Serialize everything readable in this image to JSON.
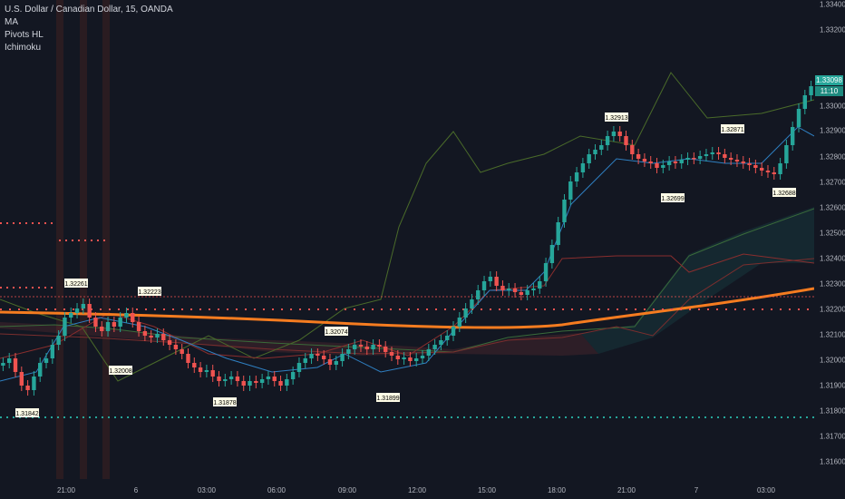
{
  "legend": {
    "title": "U.S. Dollar / Canadian Dollar, 15, OANDA",
    "ind1": "MA",
    "ind2": "Pivots HL",
    "ind3": "Ichimoku"
  },
  "price_axis": {
    "ticks": [
      "1.33400",
      "1.33200",
      "1.33000",
      "1.32900",
      "1.32800",
      "1.32700",
      "1.32600",
      "1.32500",
      "1.32400",
      "1.32300",
      "1.32200",
      "1.32100",
      "1.32000",
      "1.31900",
      "1.31800",
      "1.31700",
      "1.31600"
    ],
    "current_price": "1.33098",
    "countdown": "11:10"
  },
  "time_axis": {
    "ticks": [
      "21:00",
      "6",
      "03:00",
      "06:00",
      "09:00",
      "12:00",
      "15:00",
      "18:00",
      "21:00",
      "7",
      "03:00"
    ]
  },
  "pivots": [
    "1.32261",
    "1.32223",
    "1.32008",
    "1.31878",
    "1.31842",
    "1.32074",
    "1.31899",
    "1.32913",
    "1.32871",
    "1.32699",
    "1.32688"
  ],
  "colors": {
    "up": "#26a69a",
    "down": "#ef5350",
    "ma": "#f57c20",
    "background": "#131722"
  },
  "chart_data": {
    "type": "candlestick",
    "symbol": "USDCAD",
    "timeframe": "15",
    "ylim": [
      1.316,
      1.334
    ],
    "last_price": 1.33098
  }
}
